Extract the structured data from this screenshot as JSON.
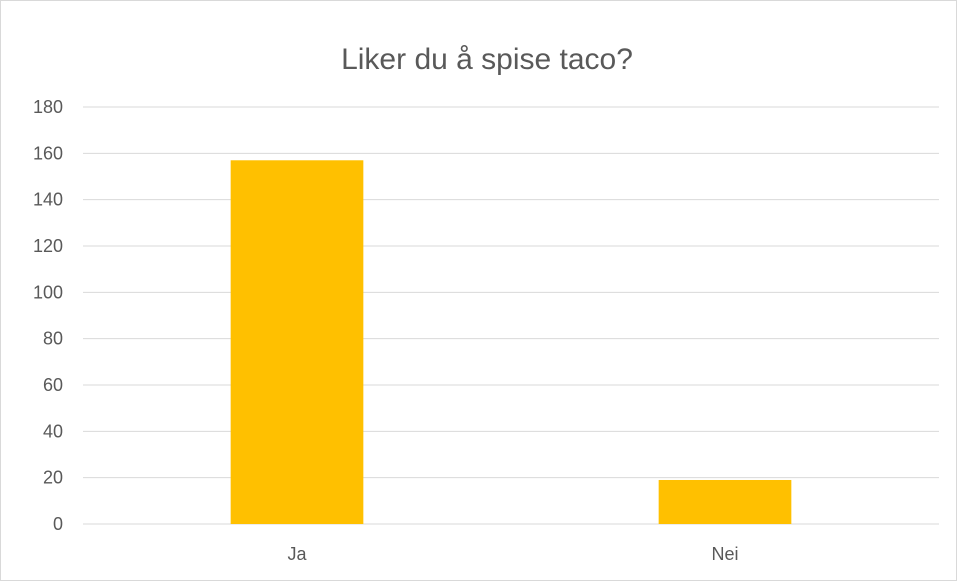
{
  "chart_data": {
    "type": "bar",
    "title": "Liker du å spise taco?",
    "categories": [
      "Ja",
      "Nei"
    ],
    "values": [
      157,
      19
    ],
    "ylim": [
      0,
      180
    ],
    "yticks": [
      0,
      20,
      40,
      60,
      80,
      100,
      120,
      140,
      160,
      180
    ],
    "grid": true,
    "legend": "none",
    "bar_color": "#FFC000",
    "grid_color": "#D9D9D9",
    "text_color": "#595959"
  }
}
